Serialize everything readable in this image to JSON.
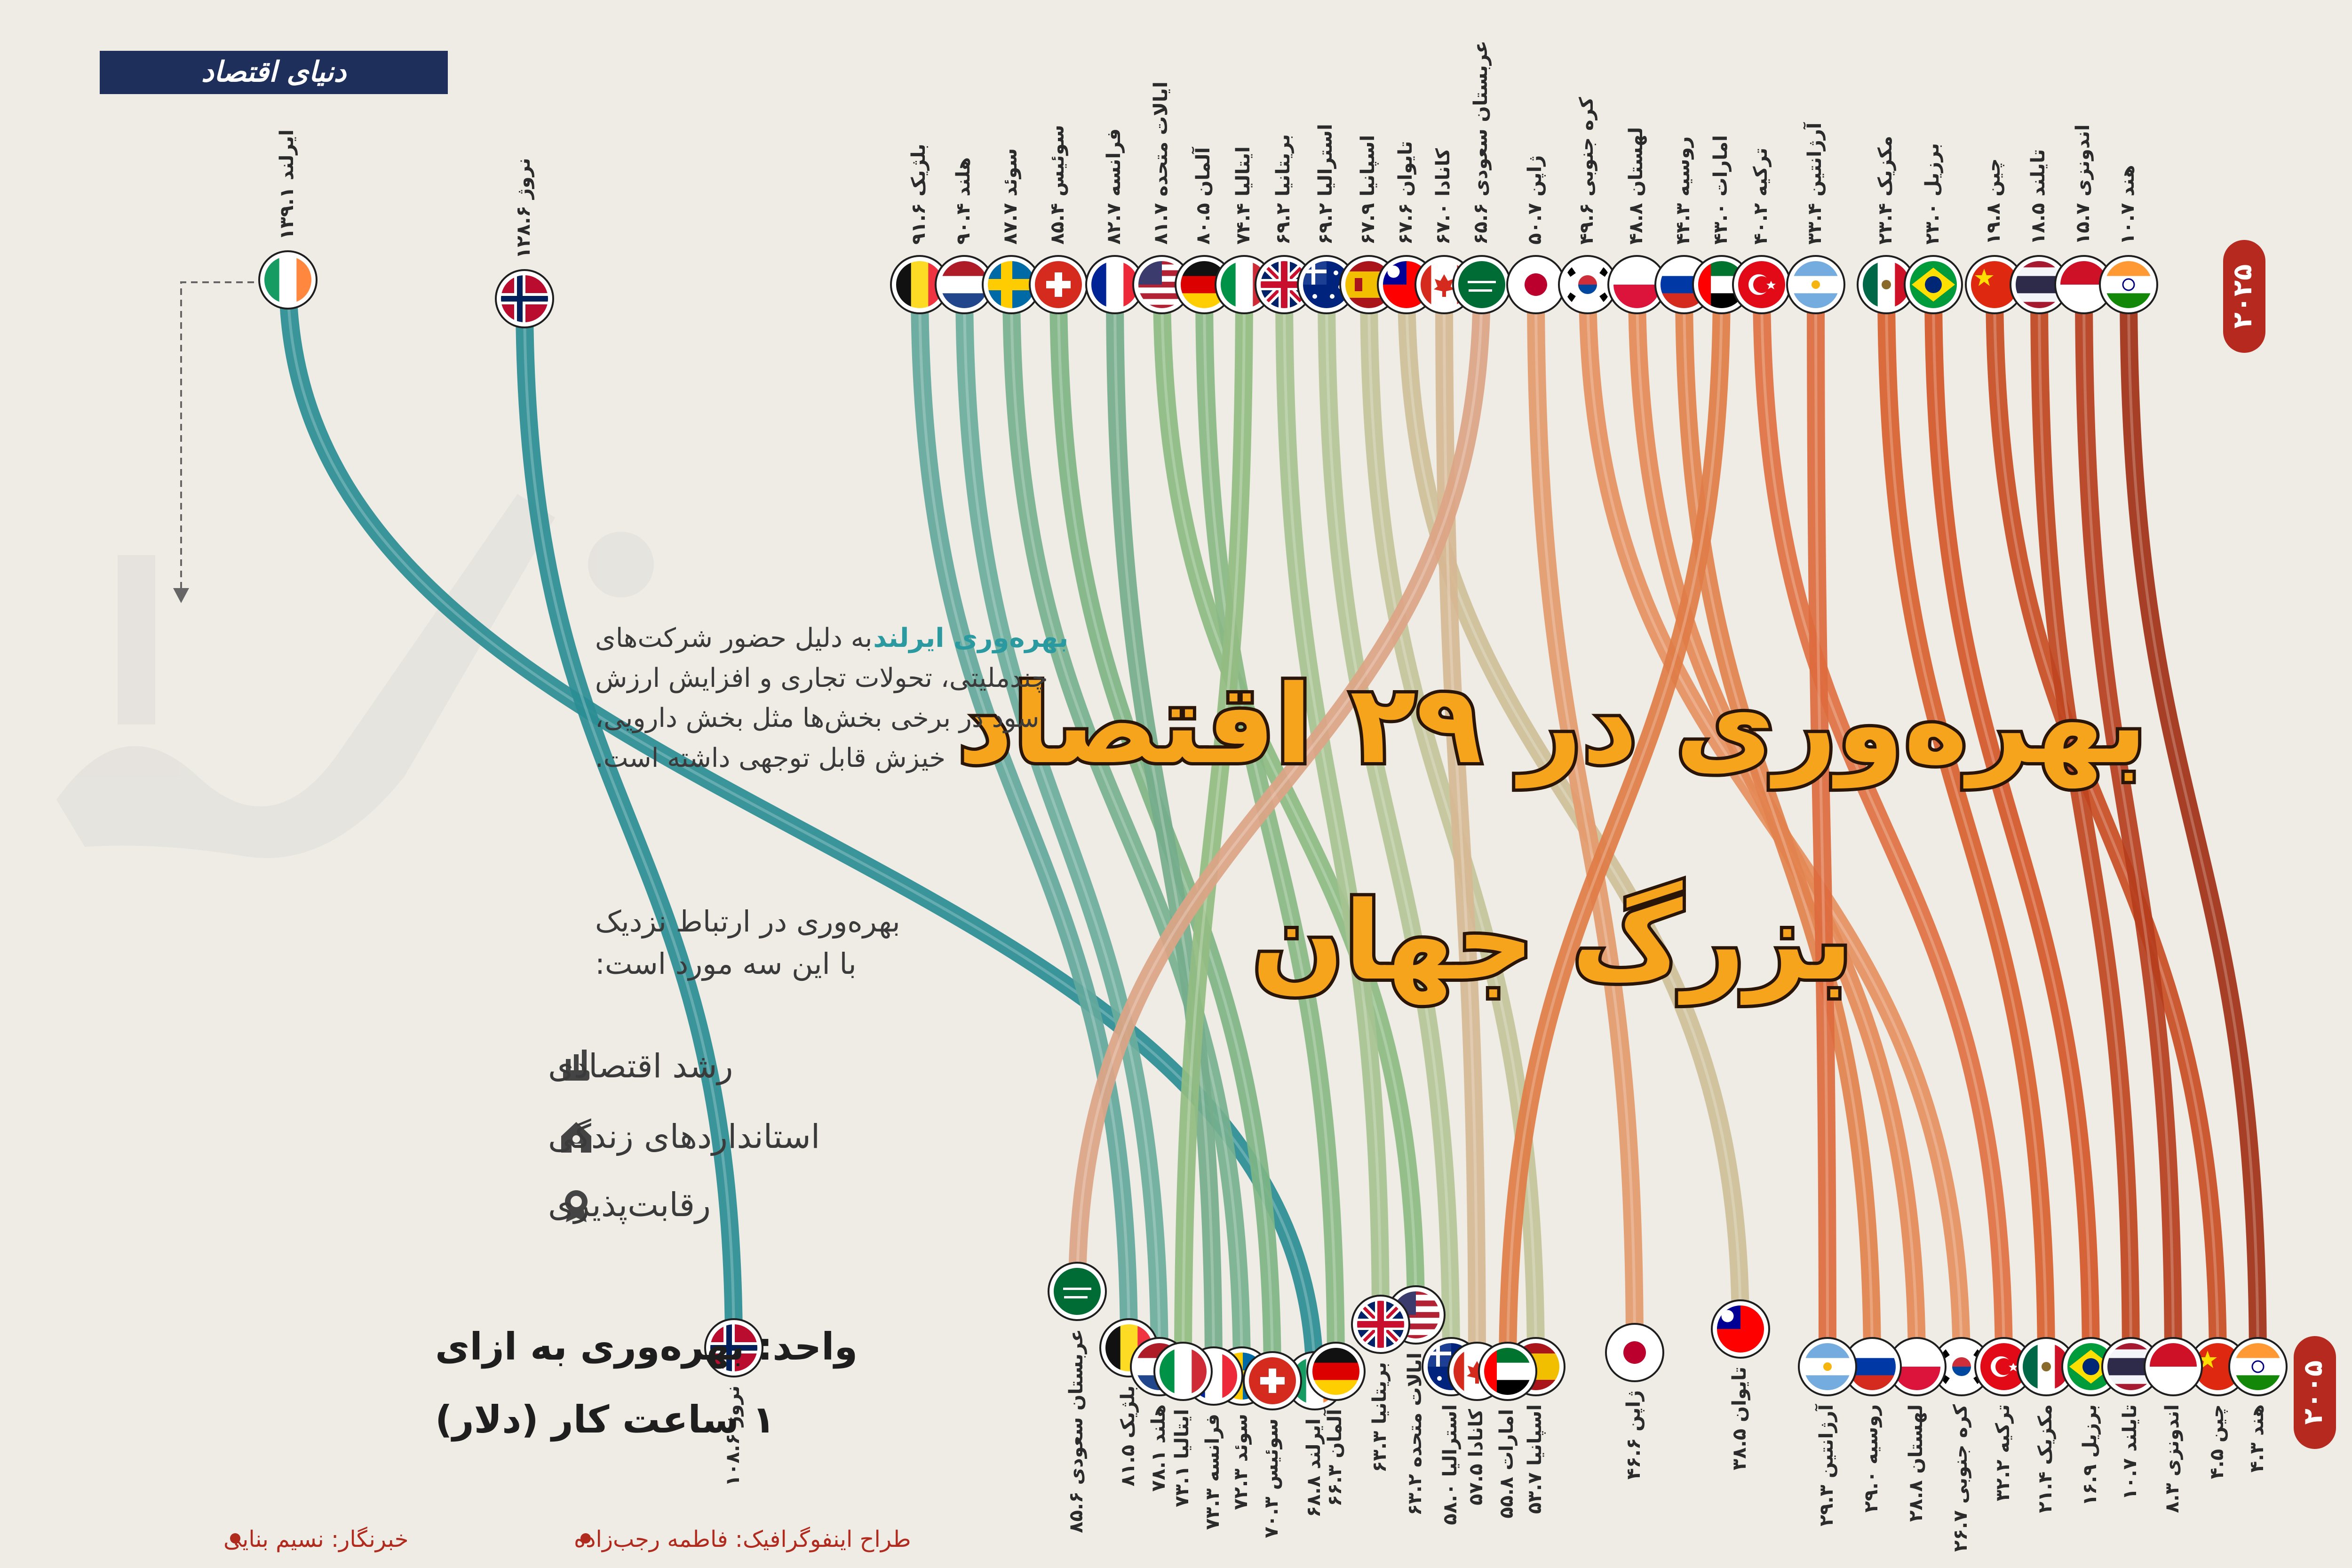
{
  "brand": {
    "logo_text": "دنیای اقتصاد"
  },
  "title": {
    "line1": "بهره‌وری در ۲۹ اقتصاد",
    "line2": "بزرگ جهان"
  },
  "years": {
    "end": "۲۰۲۵",
    "start": "۲۰۰۵"
  },
  "note": {
    "highlight": "بهره‌وری ایرلند",
    "lines": [
      "به دلیل حضور شرکت‌های",
      "چندملیتی، تحولات تجاری و افزایش ارزش",
      "سود در برخی بخش‌ها مثل بخش دارویی،",
      "خیزش قابل توجهی داشته است."
    ]
  },
  "relation": {
    "lines": [
      "بهره‌وری در ارتباط نزدیک",
      "با این سه مورد است:"
    ],
    "items": [
      {
        "label": "رشد اقتصادی",
        "icon": "growth-icon"
      },
      {
        "label": "استانداردهای زندگی",
        "icon": "house-person-icon"
      },
      {
        "label": "رقابت‌پذیری",
        "icon": "medal-icon"
      }
    ]
  },
  "unit": {
    "line1": "واحد: بهره‌وری به ازای",
    "line2": "۱ ساعت کار (دلار)"
  },
  "credits": {
    "designer": "طراح اینفوگرافیک: فاطمه رجب‌زاده",
    "reporter": "خبرنگار: نسیم بنایی"
  },
  "chart_data": {
    "type": "slope",
    "title": "بهره‌وری در ۲۹ اقتصاد بزرگ جهان",
    "unit": "بهره‌وری به ازای ۱ ساعت کار (دلار)",
    "years": [
      "۲۰۰۵",
      "۲۰۲۵"
    ],
    "series": [
      {
        "name": "ایرلند",
        "code": "IE",
        "value_2005": 68.8,
        "value_2025": 139.1,
        "label_2005": "ایرلند ۶۸.۸",
        "label_2025": "ایرلند ۱۳۹.۱"
      },
      {
        "name": "نروژ",
        "code": "NO",
        "value_2005": 108.6,
        "value_2025": 128.6,
        "label_2005": "نروژ ۱۰۸.۶",
        "label_2025": "نروژ ۱۲۸.۶"
      },
      {
        "name": "بلژیک",
        "code": "BE",
        "value_2005": 81.5,
        "value_2025": 91.6,
        "label_2005": "بلژیک ۸۱.۵",
        "label_2025": "بلژیک ۹۱.۶"
      },
      {
        "name": "هلند",
        "code": "NL",
        "value_2005": 78.1,
        "value_2025": 90.4,
        "label_2005": "هلند ۷۸.۱",
        "label_2025": "هلند ۹۰.۴"
      },
      {
        "name": "سوئد",
        "code": "SE",
        "value_2005": 72.3,
        "value_2025": 87.7,
        "label_2005": "سوئد ۷۲.۳",
        "label_2025": "سوئد ۸۷.۷"
      },
      {
        "name": "سوئیس",
        "code": "CH",
        "value_2005": 70.3,
        "value_2025": 85.4,
        "label_2005": "سوئیس ۷۰.۳",
        "label_2025": "سوئیس ۸۵.۴"
      },
      {
        "name": "فرانسه",
        "code": "FR",
        "value_2005": 73.3,
        "value_2025": 82.7,
        "label_2005": "فرانسه ۷۳.۳",
        "label_2025": "فرانسه ۸۲.۷"
      },
      {
        "name": "ایالات متحده",
        "code": "US",
        "value_2005": 63.2,
        "value_2025": 81.7,
        "label_2005": "ایالات متحده ۶۳.۲",
        "label_2025": "ایالات متحده ۸۱.۷"
      },
      {
        "name": "آلمان",
        "code": "DE",
        "value_2005": 66.3,
        "value_2025": 80.5,
        "label_2005": "آلمان ۶۶.۳",
        "label_2025": "آلمان ۸۰.۵"
      },
      {
        "name": "ایتالیا",
        "code": "IT",
        "value_2005": 73.1,
        "value_2025": 74.4,
        "label_2005": "ایتالیا ۷۳.۱",
        "label_2025": "ایتالیا ۷۴.۴"
      },
      {
        "name": "بریتانیا",
        "code": "GB",
        "value_2005": 63.3,
        "value_2025": 69.2,
        "label_2005": "بریتانیا ۶۳.۳",
        "label_2025": "بریتانیا ۶۹.۲"
      },
      {
        "name": "استرالیا",
        "code": "AU",
        "value_2005": 58.0,
        "value_2025": 69.2,
        "label_2005": "استرالیا ۵۸.۰",
        "label_2025": "استرالیا ۶۹.۲"
      },
      {
        "name": "اسپانیا",
        "code": "ES",
        "value_2005": 53.7,
        "value_2025": 67.9,
        "label_2005": "اسپانیا ۵۳.۷",
        "label_2025": "اسپانیا ۶۷.۹"
      },
      {
        "name": "تایوان",
        "code": "TW",
        "value_2005": 38.5,
        "value_2025": 67.6,
        "label_2005": "تایوان ۳۸.۵",
        "label_2025": "تایوان ۶۷.۶"
      },
      {
        "name": "کانادا",
        "code": "CA",
        "value_2005": 57.5,
        "value_2025": 67.0,
        "label_2005": "کانادا ۵۷.۵",
        "label_2025": "کانادا ۶۷.۰"
      },
      {
        "name": "عربستان سعودی",
        "code": "SA",
        "value_2005": 85.6,
        "value_2025": 65.6,
        "label_2005": "عربستان سعودی ۸۵.۶",
        "label_2025": "عربستان سعودی ۶۵.۶"
      },
      {
        "name": "ژاپن",
        "code": "JP",
        "value_2005": 46.6,
        "value_2025": 50.7,
        "label_2005": "ژاپن ۴۶.۶",
        "label_2025": "ژاپن ۵۰.۷"
      },
      {
        "name": "کره جنوبی",
        "code": "KR",
        "value_2005": 26.7,
        "value_2025": 49.6,
        "label_2005": "کره جنوبی ۲۶.۷",
        "label_2025": "کره جنوبی ۴۹.۶"
      },
      {
        "name": "لهستان",
        "code": "PL",
        "value_2005": 28.8,
        "value_2025": 48.8,
        "label_2005": "لهستان ۲۸.۸",
        "label_2025": "لهستان ۴۸.۸"
      },
      {
        "name": "روسیه",
        "code": "RU",
        "value_2005": 29.0,
        "value_2025": 44.3,
        "label_2005": "روسیه ۲۹.۰",
        "label_2025": "روسیه ۴۴.۳"
      },
      {
        "name": "امارات",
        "code": "AE",
        "value_2005": 55.8,
        "value_2025": 43.0,
        "label_2005": "امارات ۵۵.۸",
        "label_2025": "امارات ۴۳.۰"
      },
      {
        "name": "ترکیه",
        "code": "TR",
        "value_2005": 32.2,
        "value_2025": 40.2,
        "label_2005": "ترکیه ۳۲.۲",
        "label_2025": "ترکیه ۴۰.۲"
      },
      {
        "name": "آرژانتین",
        "code": "AR",
        "value_2005": 29.3,
        "value_2025": 33.4,
        "label_2005": "آرژانتین ۲۹.۳",
        "label_2025": "آرژانتین ۳۳.۴"
      },
      {
        "name": "مکزیک",
        "code": "MX",
        "value_2005": 21.4,
        "value_2025": 23.4,
        "label_2005": "مکزیک ۲۱.۴",
        "label_2025": "مکزیک ۲۳.۴"
      },
      {
        "name": "برزیل",
        "code": "BR",
        "value_2005": 16.9,
        "value_2025": 23.0,
        "label_2005": "برزیل ۱۶.۹",
        "label_2025": "برزیل ۲۳.۰"
      },
      {
        "name": "چین",
        "code": "CN",
        "value_2005": 4.5,
        "value_2025": 19.8,
        "label_2005": "چین ۴.۵",
        "label_2025": "چین ۱۹.۸"
      },
      {
        "name": "تایلند",
        "code": "TH",
        "value_2005": 10.7,
        "value_2025": 18.5,
        "label_2005": "تایلند ۱۰.۷",
        "label_2025": "تایلند ۱۸.۵"
      },
      {
        "name": "اندونزی",
        "code": "ID",
        "value_2005": 8.3,
        "value_2025": 15.7,
        "label_2005": "اندونزی ۸.۳",
        "label_2025": "اندونزی ۱۵.۷"
      },
      {
        "name": "هند",
        "code": "IN",
        "value_2005": 4.3,
        "value_2025": 10.7,
        "label_2005": "هند ۴.۳",
        "label_2025": "هند ۱۰.۷"
      }
    ]
  }
}
